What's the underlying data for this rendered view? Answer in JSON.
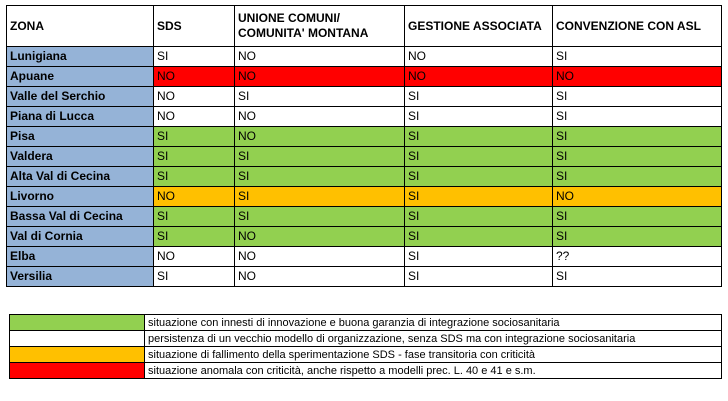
{
  "headers": {
    "zona": "ZONA",
    "sds": "SDS",
    "unione_line1": "UNIONE COMUNI/",
    "unione_line2": "COMUNITA' MONTANA",
    "gestione": "GESTIONE ASSOCIATA",
    "convenzione": "CONVENZIONE CON ASL"
  },
  "rows": [
    {
      "zona": "Lunigiana",
      "sds": "SI",
      "unione": "NO",
      "gestione": "NO",
      "convenzione": "SI",
      "color": "white"
    },
    {
      "zona": "Apuane",
      "sds": "NO",
      "unione": "NO",
      "gestione": "NO",
      "convenzione": "NO",
      "color": "red"
    },
    {
      "zona": "Valle del Serchio",
      "sds": "NO",
      "unione": "SI",
      "gestione": "SI",
      "convenzione": "SI",
      "color": "white"
    },
    {
      "zona": "Piana di Lucca",
      "sds": "NO",
      "unione": "NO",
      "gestione": "SI",
      "convenzione": "SI",
      "color": "white"
    },
    {
      "zona": "Pisa",
      "sds": "SI",
      "unione": "NO",
      "gestione": "SI",
      "convenzione": "SI",
      "color": "green"
    },
    {
      "zona": "Valdera",
      "sds": "SI",
      "unione": "SI",
      "gestione": "SI",
      "convenzione": "SI",
      "color": "green"
    },
    {
      "zona": "Alta Val di Cecina",
      "sds": "SI",
      "unione": "SI",
      "gestione": "SI",
      "convenzione": "SI",
      "color": "green"
    },
    {
      "zona": "Livorno",
      "sds": "NO",
      "unione": "SI",
      "gestione": "SI",
      "convenzione": "NO",
      "color": "orange"
    },
    {
      "zona": "Bassa Val di Cecina",
      "sds": "SI",
      "unione": "SI",
      "gestione": "SI",
      "convenzione": "SI",
      "color": "green"
    },
    {
      "zona": "Val di Cornia",
      "sds": "SI",
      "unione": "NO",
      "gestione": "SI",
      "convenzione": "SI",
      "color": "green"
    },
    {
      "zona": "Elba",
      "sds": "NO",
      "unione": "NO",
      "gestione": "SI",
      "convenzione": "??",
      "color": "white"
    },
    {
      "zona": "Versilia",
      "sds": "SI",
      "unione": "NO",
      "gestione": "SI",
      "convenzione": "SI",
      "color": "white"
    }
  ],
  "legend": [
    {
      "color": "green",
      "text": "situazione con innesti di innovazione e buona garanzia di integrazione sociosanitaria"
    },
    {
      "color": "white",
      "text": "persistenza di un vecchio modello di organizzazione, senza SDS ma con integrazione sociosanitaria"
    },
    {
      "color": "orange",
      "text": "situazione di fallimento della sperimentazione SDS - fase transitoria con criticità"
    },
    {
      "color": "red",
      "text": "situazione anomala con criticità, anche rispetto a modelli prec. L. 40 e 41 e s.m."
    }
  ],
  "colors": {
    "green": "#92d050",
    "white": "#ffffff",
    "orange": "#ffc000",
    "red": "#ff0000",
    "zone": "#95b3d7"
  }
}
